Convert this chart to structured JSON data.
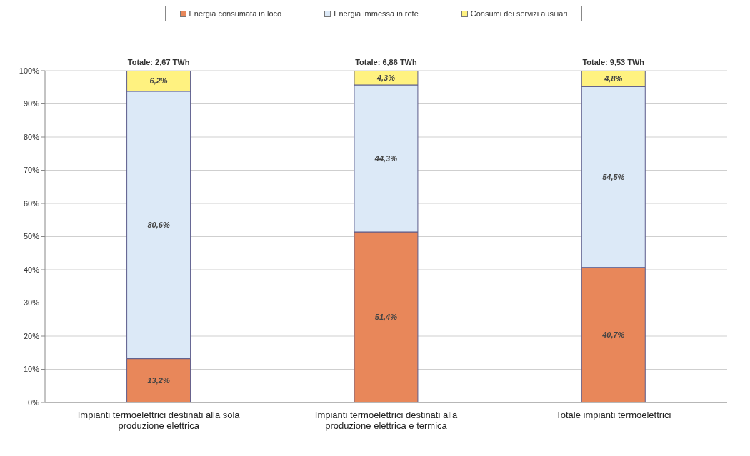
{
  "chart_data": {
    "type": "bar",
    "stacked": true,
    "categories": [
      "Impianti termoelettrici destinati alla sola produzione elettrica",
      "Impianti termoelettrici destinati alla produzione elettrica e termica",
      "Totale impianti termoelettrici"
    ],
    "series": [
      {
        "name": "Energia consumata in loco",
        "color": "#e8875a",
        "values": [
          13.2,
          51.4,
          40.7
        ],
        "value_labels": [
          "13,2%",
          "51,4%",
          "40,7%"
        ]
      },
      {
        "name": "Energia immessa in rete",
        "color": "#dce9f7",
        "values": [
          80.6,
          44.3,
          54.5
        ],
        "value_labels": [
          "80,6%",
          "44,3%",
          "54,5%"
        ]
      },
      {
        "name": "Consumi dei servizi ausiliari",
        "color": "#fff280",
        "values": [
          6.2,
          4.3,
          4.8
        ],
        "value_labels": [
          "6,2%",
          "4,3%",
          "4,8%"
        ]
      }
    ],
    "annotations": [
      "Totale: 2,67 TWh",
      "Totale: 6,86 TWh",
      "Totale: 9,53 TWh"
    ],
    "ylim": [
      0,
      100
    ],
    "yticks": [
      {
        "value": 0,
        "label": "0%"
      },
      {
        "value": 10,
        "label": "10%"
      },
      {
        "value": 20,
        "label": "20%"
      },
      {
        "value": 30,
        "label": "30%"
      },
      {
        "value": 40,
        "label": "40%"
      },
      {
        "value": 50,
        "label": "50%"
      },
      {
        "value": 60,
        "label": "60%"
      },
      {
        "value": 70,
        "label": "70%"
      },
      {
        "value": 80,
        "label": "80%"
      },
      {
        "value": 90,
        "label": "90%"
      },
      {
        "value": 100,
        "label": "100%"
      }
    ],
    "grid": "y",
    "legend": "top"
  }
}
